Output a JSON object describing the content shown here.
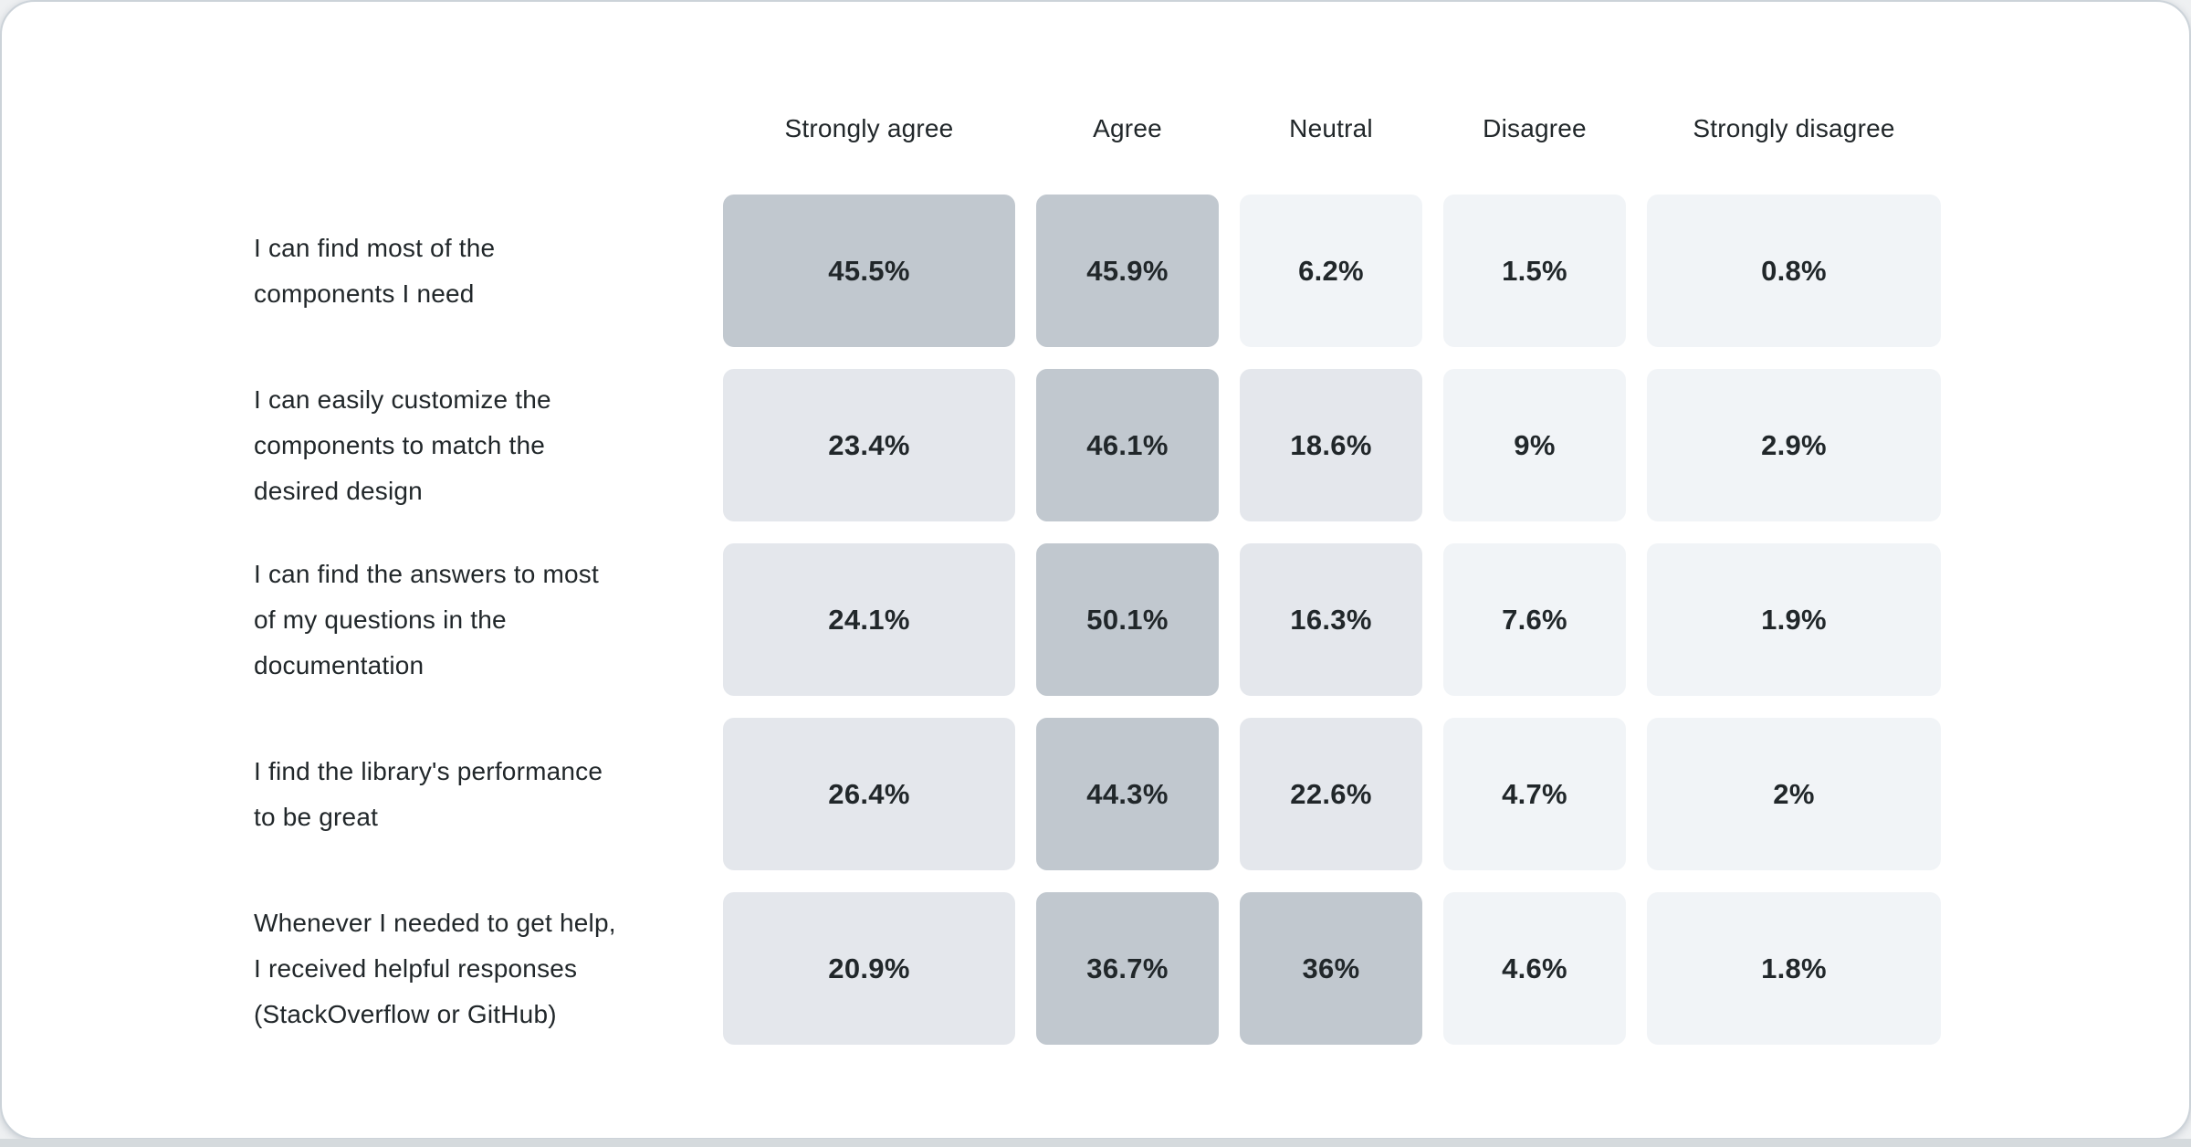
{
  "chart_data": {
    "type": "heatmap",
    "title": "",
    "columns": [
      "Strongly agree",
      "Agree",
      "Neutral",
      "Disagree",
      "Strongly disagree"
    ],
    "rows": [
      {
        "label": "I can find most of the\ncomponents I need",
        "values": [
          45.5,
          45.9,
          6.2,
          1.5,
          0.8
        ],
        "display": [
          "45.5%",
          "45.9%",
          "6.2%",
          "1.5%",
          "0.8%"
        ]
      },
      {
        "label": "I can easily customize the\ncomponents to match the\ndesired design",
        "values": [
          23.4,
          46.1,
          18.6,
          9,
          2.9
        ],
        "display": [
          "23.4%",
          "46.1%",
          "18.6%",
          "9%",
          "2.9%"
        ]
      },
      {
        "label": "I can find the answers to most\nof my questions in the\ndocumentation",
        "values": [
          24.1,
          50.1,
          16.3,
          7.6,
          1.9
        ],
        "display": [
          "24.1%",
          "50.1%",
          "16.3%",
          "7.6%",
          "1.9%"
        ]
      },
      {
        "label": "I find the library's performance\nto be great",
        "values": [
          26.4,
          44.3,
          22.6,
          4.7,
          2
        ],
        "display": [
          "26.4%",
          "44.3%",
          "22.6%",
          "4.7%",
          "2%"
        ]
      },
      {
        "label": "Whenever I needed to get help,\nI received helpful responses\n(StackOverflow or GitHub)",
        "values": [
          20.9,
          36.7,
          36,
          4.6,
          1.8
        ],
        "display": [
          "20.9%",
          "36.7%",
          "36%",
          "4.6%",
          "1.8%"
        ]
      }
    ],
    "heat_scale": {
      "bins": [
        {
          "min": 30,
          "color": "#c1c8cf"
        },
        {
          "min": 10,
          "color": "#e4e7ec"
        },
        {
          "min": 0,
          "color": "#f1f4f7"
        }
      ]
    },
    "colors": {
      "card_background": "#ffffff",
      "card_border": "#ccd3d9",
      "bottom_strip": "#d5dadd",
      "text": "#21272a"
    }
  }
}
